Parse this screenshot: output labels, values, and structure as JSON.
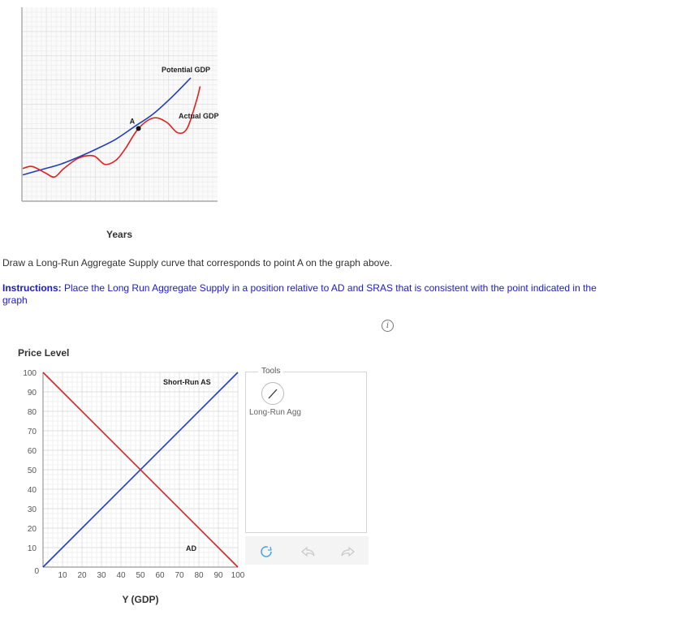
{
  "question": {
    "prompt": "Draw a Long-Run Aggregate Supply curve that corresponds to point A on the graph above.",
    "instructions_label": "Instructions:",
    "instructions_text": "Place the Long Run Aggregate Supply in a position relative to AD and SRAS that is consistent with the point indicated in the graph"
  },
  "tools": {
    "title": "Tools",
    "items": [
      {
        "label": "Long-Run Agg",
        "icon": "line-draw-icon"
      }
    ],
    "actions": [
      {
        "name": "reset",
        "icon": "reset-icon"
      },
      {
        "name": "undo",
        "icon": "undo-icon"
      },
      {
        "name": "redo",
        "icon": "redo-icon"
      }
    ]
  },
  "chart_data": [
    {
      "type": "line",
      "xlabel": "Years",
      "ylabel": "",
      "grid": true,
      "series": [
        {
          "name": "Potential GDP",
          "color": "#1f3fbf",
          "points": [
            [
              0.0,
              0.08
            ],
            [
              0.1,
              0.13
            ],
            [
              0.2,
              0.18
            ],
            [
              0.3,
              0.25
            ],
            [
              0.4,
              0.33
            ],
            [
              0.5,
              0.42
            ],
            [
              0.6,
              0.54
            ],
            [
              0.7,
              0.66
            ],
            [
              0.8,
              0.82
            ],
            [
              0.9,
              1.0
            ]
          ]
        },
        {
          "name": "Actual GDP",
          "color": "#e02020",
          "points": [
            [
              0.0,
              0.14
            ],
            [
              0.05,
              0.16
            ],
            [
              0.12,
              0.1
            ],
            [
              0.17,
              0.06
            ],
            [
              0.22,
              0.14
            ],
            [
              0.3,
              0.24
            ],
            [
              0.38,
              0.26
            ],
            [
              0.44,
              0.18
            ],
            [
              0.5,
              0.22
            ],
            [
              0.55,
              0.33
            ],
            [
              0.62,
              0.52
            ],
            [
              0.7,
              0.62
            ],
            [
              0.77,
              0.58
            ],
            [
              0.83,
              0.48
            ],
            [
              0.88,
              0.52
            ],
            [
              0.93,
              0.78
            ],
            [
              0.95,
              0.92
            ]
          ]
        }
      ],
      "annotations": [
        {
          "label": "A",
          "x": 0.62,
          "y": 0.52
        }
      ]
    },
    {
      "type": "line",
      "xlabel": "Y (GDP)",
      "ylabel": "Price Level",
      "xlim": [
        0,
        100
      ],
      "ylim": [
        0,
        100
      ],
      "x_ticks": [
        10,
        20,
        30,
        40,
        50,
        60,
        70,
        80,
        90,
        100
      ],
      "y_ticks": [
        10,
        20,
        30,
        40,
        50,
        60,
        70,
        80,
        90,
        100
      ],
      "origin_label": "0",
      "grid": true,
      "series": [
        {
          "name": "Short-Run AS",
          "color": "#1f3fbf",
          "points": [
            [
              0,
              0
            ],
            [
              100,
              100
            ]
          ]
        },
        {
          "name": "AD",
          "color": "#e02020",
          "points": [
            [
              0,
              100
            ],
            [
              100,
              0
            ]
          ]
        }
      ]
    }
  ]
}
